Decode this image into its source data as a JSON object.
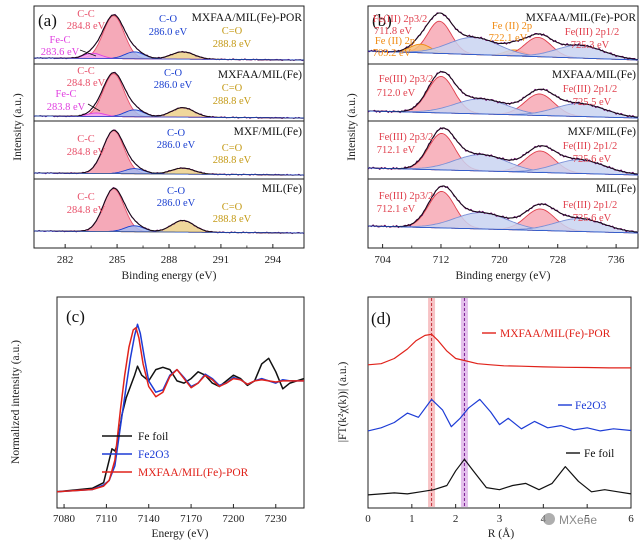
{
  "colors": {
    "cc": "#e8506a",
    "ccFill": "#f39aab",
    "co": "#1a3fd0",
    "coFill": "#a7bbf0",
    "ceo": "#c49a16",
    "ceoFill": "#ecd089",
    "fec": "#e040e0",
    "fecFill": "#f0a8f0",
    "fe3": "#e0404d",
    "fe3Fill": "#f7a8b4",
    "fe2": "#f08a10",
    "fe2Fill": "#f7c07a",
    "sat": "#7a8fd6",
    "satFill": "#c9d3f1",
    "env": "#2050c8",
    "data": "#600060",
    "fit": "#111111",
    "black": "#111111",
    "blue": "#1d3cd6",
    "red": "#e0221a",
    "mark1": "#e8545a",
    "mark2": "#b048c8"
  },
  "chart_data": [
    {
      "id": "a",
      "type": "line",
      "panel_label": "(a)",
      "xlabel": "Binding energy (eV)",
      "ylabel": "Intensity (a.u.)",
      "xlim": [
        280.2,
        295.8
      ],
      "xticks": [
        282,
        285,
        288,
        291,
        294
      ],
      "x_reversed": false,
      "stacks": [
        {
          "title": "MXFAA/MIL(Fe)-POR",
          "peaks": [
            {
              "name": "C-C",
              "energy_label": "284.8 eV",
              "center": 284.8,
              "height": 1.0,
              "width": 0.6,
              "kind": "cc"
            },
            {
              "name": "C-O",
              "energy_label": "286.0 eV",
              "center": 286.0,
              "height": 0.16,
              "width": 0.55,
              "kind": "co"
            },
            {
              "name": "C=O",
              "energy_label": "288.8 eV",
              "center": 288.8,
              "height": 0.17,
              "width": 0.65,
              "kind": "ceo"
            },
            {
              "name": "Fe-C",
              "energy_label": "283.6 eV",
              "center": 283.6,
              "height": 0.12,
              "width": 0.5,
              "kind": "fec"
            }
          ]
        },
        {
          "title": "MXFAA/MIL(Fe)",
          "peaks": [
            {
              "name": "C-C",
              "energy_label": "284.8 eV",
              "center": 284.8,
              "height": 1.0,
              "width": 0.6,
              "kind": "cc"
            },
            {
              "name": "C-O",
              "energy_label": "286.0 eV",
              "center": 286.0,
              "height": 0.16,
              "width": 0.55,
              "kind": "co"
            },
            {
              "name": "C=O",
              "energy_label": "288.8 eV",
              "center": 288.8,
              "height": 0.22,
              "width": 0.65,
              "kind": "ceo"
            },
            {
              "name": "Fe-C",
              "energy_label": "283.8 eV",
              "center": 283.8,
              "height": 0.08,
              "width": 0.5,
              "kind": "fec"
            }
          ]
        },
        {
          "title": "MXF/MIL(Fe)",
          "peaks": [
            {
              "name": "C-C",
              "energy_label": "284.8 eV",
              "center": 284.8,
              "height": 1.0,
              "width": 0.6,
              "kind": "cc"
            },
            {
              "name": "C-O",
              "energy_label": "286.0 eV",
              "center": 286.0,
              "height": 0.12,
              "width": 0.55,
              "kind": "co"
            },
            {
              "name": "C=O",
              "energy_label": "288.8 eV",
              "center": 288.8,
              "height": 0.14,
              "width": 0.65,
              "kind": "ceo"
            }
          ]
        },
        {
          "title": "MIL(Fe)",
          "peaks": [
            {
              "name": "C-C",
              "energy_label": "284.8 eV",
              "center": 284.8,
              "height": 1.0,
              "width": 0.6,
              "kind": "cc"
            },
            {
              "name": "C-O",
              "energy_label": "286.0 eV",
              "center": 286.0,
              "height": 0.14,
              "width": 0.55,
              "kind": "co"
            },
            {
              "name": "C=O",
              "energy_label": "288.8 eV",
              "center": 288.8,
              "height": 0.27,
              "width": 0.65,
              "kind": "ceo"
            }
          ]
        }
      ]
    },
    {
      "id": "b",
      "type": "line",
      "panel_label": "(b)",
      "xlabel": "Binding energy (eV)",
      "ylabel": "Intensity (a.u.)",
      "xlim": [
        702,
        739
      ],
      "xticks": [
        704,
        712,
        720,
        728,
        736
      ],
      "x_reversed": false,
      "stacks": [
        {
          "title": "MXFAA/MIL(Fe)-POR",
          "peaks": [
            {
              "name": "Fe(III) 2p3/2",
              "energy_label": "711.8 eV",
              "center": 711.8,
              "height": 0.75,
              "width": 1.6,
              "kind": "fe3"
            },
            {
              "name": "Fe (II) 2p",
              "energy_label": "709.2 eV",
              "center": 709.2,
              "height": 0.2,
              "width": 1.4,
              "kind": "fe2"
            },
            {
              "name": "Fe (II) 2p",
              "energy_label": "722.1 eV",
              "center": 722.1,
              "height": 0.14,
              "width": 1.3,
              "kind": "fe2"
            },
            {
              "name": "Fe(III) 2p1/2",
              "energy_label": "725.3 eV",
              "center": 725.3,
              "height": 0.45,
              "width": 1.8,
              "kind": "fe3"
            },
            {
              "name": "sat1",
              "energy_label": "",
              "center": 716.5,
              "height": 0.4,
              "width": 3.4,
              "kind": "sat"
            },
            {
              "name": "sat2",
              "energy_label": "",
              "center": 731.0,
              "height": 0.3,
              "width": 3.2,
              "kind": "sat"
            }
          ]
        },
        {
          "title": "MXFAA/MIL(Fe)",
          "peaks": [
            {
              "name": "Fe(III) 2p3/2",
              "energy_label": "712.0 eV",
              "center": 712.0,
              "height": 0.85,
              "width": 1.8,
              "kind": "fe3"
            },
            {
              "name": "Fe(III) 2p1/2",
              "energy_label": "725.5 eV",
              "center": 725.5,
              "height": 0.5,
              "width": 2.0,
              "kind": "fe3"
            },
            {
              "name": "sat1",
              "energy_label": "",
              "center": 717.5,
              "height": 0.35,
              "width": 3.6,
              "kind": "sat"
            },
            {
              "name": "sat2",
              "energy_label": "",
              "center": 731.0,
              "height": 0.3,
              "width": 3.4,
              "kind": "sat"
            }
          ]
        },
        {
          "title": "MXF/MIL(Fe)",
          "peaks": [
            {
              "name": "Fe(III) 2p3/2",
              "energy_label": "712.1 eV",
              "center": 712.1,
              "height": 0.85,
              "width": 1.8,
              "kind": "fe3"
            },
            {
              "name": "Fe(III) 2p1/2",
              "energy_label": "725.6 eV",
              "center": 725.6,
              "height": 0.5,
              "width": 2.0,
              "kind": "fe3"
            },
            {
              "name": "sat1",
              "energy_label": "",
              "center": 717.5,
              "height": 0.38,
              "width": 3.6,
              "kind": "sat"
            },
            {
              "name": "sat2",
              "energy_label": "",
              "center": 731.0,
              "height": 0.32,
              "width": 3.4,
              "kind": "sat"
            }
          ]
        },
        {
          "title": "MIL(Fe)",
          "peaks": [
            {
              "name": "Fe(III) 2p3/2",
              "energy_label": "712.1 eV",
              "center": 712.1,
              "height": 0.85,
              "width": 1.8,
              "kind": "fe3"
            },
            {
              "name": "Fe(III) 2p1/2",
              "energy_label": "725.6 eV",
              "center": 725.6,
              "height": 0.5,
              "width": 2.0,
              "kind": "fe3"
            },
            {
              "name": "sat1",
              "energy_label": "",
              "center": 717.5,
              "height": 0.38,
              "width": 3.6,
              "kind": "sat"
            },
            {
              "name": "sat2",
              "energy_label": "",
              "center": 731.0,
              "height": 0.3,
              "width": 3.4,
              "kind": "sat"
            }
          ]
        }
      ]
    },
    {
      "id": "c",
      "type": "line",
      "panel_label": "(c)",
      "xlabel": "Energy (eV)",
      "ylabel": "Normalized intensity (a.u.)",
      "xlim": [
        7075,
        7250
      ],
      "xticks": [
        7080,
        7110,
        7140,
        7170,
        7200,
        7230
      ],
      "ylim": [
        0,
        1.6
      ],
      "series": [
        {
          "name": "Fe foil",
          "color_key": "black",
          "x": [
            7075,
            7100,
            7108,
            7112,
            7114,
            7116,
            7118,
            7121,
            7124,
            7127,
            7130,
            7132,
            7135,
            7140,
            7145,
            7150,
            7155,
            7160,
            7165,
            7170,
            7175,
            7180,
            7185,
            7190,
            7195,
            7200,
            7205,
            7210,
            7215,
            7220,
            7225,
            7230,
            7235,
            7240,
            7250
          ],
          "y": [
            0.02,
            0.05,
            0.1,
            0.3,
            0.4,
            0.38,
            0.45,
            0.7,
            0.85,
            0.95,
            1.05,
            1.13,
            1.05,
            1.0,
            1.1,
            1.12,
            1.1,
            1.0,
            0.98,
            1.02,
            1.08,
            1.05,
            0.98,
            0.95,
            1.0,
            1.05,
            1.02,
            0.96,
            1.0,
            1.15,
            1.2,
            1.08,
            0.93,
            0.98,
            1.02
          ]
        },
        {
          "name": "Fe2O3",
          "color_key": "blue",
          "x": [
            7075,
            7100,
            7108,
            7112,
            7116,
            7120,
            7124,
            7127,
            7130,
            7132,
            7134,
            7137,
            7140,
            7145,
            7150,
            7155,
            7160,
            7165,
            7170,
            7175,
            7180,
            7185,
            7190,
            7195,
            7200,
            7205,
            7210,
            7215,
            7220,
            7225,
            7230,
            7235,
            7240,
            7250
          ],
          "y": [
            0.02,
            0.04,
            0.08,
            0.12,
            0.25,
            0.6,
            0.95,
            1.2,
            1.4,
            1.5,
            1.42,
            1.2,
            1.0,
            0.9,
            0.92,
            1.05,
            1.1,
            1.03,
            0.95,
            0.98,
            1.06,
            1.02,
            0.96,
            0.98,
            1.03,
            1.01,
            0.97,
            1.0,
            1.02,
            1.0,
            0.98,
            1.01,
            1.0,
            1.0
          ]
        },
        {
          "name": "MXFAA/MIL(Fe)-POR",
          "color_key": "red",
          "x": [
            7075,
            7100,
            7108,
            7112,
            7116,
            7120,
            7123,
            7126,
            7129,
            7131,
            7133,
            7136,
            7140,
            7145,
            7150,
            7155,
            7160,
            7165,
            7170,
            7175,
            7180,
            7185,
            7190,
            7195,
            7200,
            7205,
            7210,
            7215,
            7220,
            7225,
            7230,
            7235,
            7240,
            7250
          ],
          "y": [
            0.02,
            0.04,
            0.07,
            0.12,
            0.3,
            0.75,
            1.05,
            1.3,
            1.45,
            1.47,
            1.38,
            1.15,
            0.95,
            0.86,
            0.9,
            1.04,
            1.1,
            1.02,
            0.94,
            0.98,
            1.05,
            1.01,
            0.95,
            0.98,
            1.02,
            1.01,
            0.97,
            1.0,
            1.01,
            1.0,
            0.99,
            1.0,
            1.0,
            1.0
          ]
        }
      ]
    },
    {
      "id": "d",
      "type": "line",
      "panel_label": "(d)",
      "xlabel": "R (Å)",
      "ylabel": "|FT(k²χ(k))| (a.u.)",
      "xlim": [
        0,
        6
      ],
      "xticks": [
        0,
        1,
        2,
        3,
        4,
        5,
        6
      ],
      "markers": [
        1.45,
        2.2
      ],
      "series": [
        {
          "name": "MXFAA/MIL(Fe)-POR",
          "color_key": "red",
          "x": [
            0,
            0.3,
            0.6,
            0.9,
            1.1,
            1.3,
            1.45,
            1.6,
            1.8,
            2.0,
            2.2,
            2.5,
            2.8,
            3.1,
            3.5,
            4.0,
            4.5,
            5.0,
            5.5,
            6.0
          ],
          "y": [
            6.25,
            6.3,
            6.55,
            7.0,
            7.4,
            7.65,
            7.7,
            7.4,
            6.9,
            6.55,
            6.45,
            6.3,
            6.25,
            6.2,
            6.18,
            6.15,
            6.13,
            6.12,
            6.1,
            6.1
          ]
        },
        {
          "name": "Fe2O3",
          "color_key": "blue",
          "x": [
            0,
            0.3,
            0.6,
            0.9,
            1.15,
            1.45,
            1.7,
            1.9,
            2.1,
            2.3,
            2.55,
            2.8,
            3.0,
            3.2,
            3.5,
            3.8,
            4.1,
            4.4,
            4.7,
            5.0,
            5.3,
            5.6,
            6.0
          ],
          "y": [
            3.1,
            3.25,
            3.5,
            3.95,
            3.75,
            4.6,
            4.1,
            3.3,
            3.7,
            4.2,
            4.6,
            4.0,
            3.4,
            3.7,
            3.2,
            3.55,
            3.25,
            3.35,
            3.15,
            3.25,
            3.1,
            3.2,
            3.12
          ]
        },
        {
          "name": "Fe foil",
          "color_key": "black",
          "x": [
            0,
            0.3,
            0.6,
            0.9,
            1.2,
            1.5,
            1.8,
            2.0,
            2.2,
            2.4,
            2.7,
            3.0,
            3.3,
            3.6,
            3.9,
            4.2,
            4.5,
            4.8,
            5.1,
            5.4,
            5.7,
            6.0
          ],
          "y": [
            0.05,
            0.1,
            0.15,
            0.1,
            0.2,
            0.3,
            0.5,
            1.2,
            1.75,
            1.2,
            0.4,
            0.3,
            0.5,
            0.6,
            0.3,
            0.6,
            1.4,
            0.7,
            0.2,
            0.3,
            0.2,
            0.1
          ]
        }
      ]
    }
  ],
  "panel_a": {
    "label": "(a)",
    "xlabel": "Binding energy (eV)",
    "ylabel": "Intensity (a.u.)",
    "ticks": [
      "282",
      "285",
      "288",
      "291",
      "294"
    ],
    "s1": {
      "title": "MXFAA/MIL(Fe)-POR",
      "cc": "C-C",
      "cc_e": "284.8 eV",
      "co": "C-O",
      "co_e": "286.0 eV",
      "ceo": "C=O",
      "ceo_e": "288.8 eV",
      "fec": "Fe-C",
      "fec_e": "283.6 eV"
    },
    "s2": {
      "title": "MXFAA/MIL(Fe)",
      "cc": "C-C",
      "cc_e": "284.8 eV",
      "co": "C-O",
      "co_e": "286.0 eV",
      "ceo": "C=O",
      "ceo_e": "288.8 eV",
      "fec": "Fe-C",
      "fec_e": "283.8 eV"
    },
    "s3": {
      "title": "MXF/MIL(Fe)",
      "cc": "C-C",
      "cc_e": "284.8 eV",
      "co": "C-O",
      "co_e": "286.0 eV",
      "ceo": "C=O",
      "ceo_e": "288.8 eV"
    },
    "s4": {
      "title": "MIL(Fe)",
      "cc": "C-C",
      "cc_e": "284.8 eV",
      "co": "C-O",
      "co_e": "286.0 eV",
      "ceo": "C=O",
      "ceo_e": "288.8 eV"
    }
  },
  "panel_b": {
    "label": "(b)",
    "xlabel": "Binding energy (eV)",
    "ylabel": "Intensity (a.u.)",
    "ticks": [
      "704",
      "712",
      "720",
      "728",
      "736"
    ],
    "s1": {
      "title": "MXFAA/MIL(Fe)-POR",
      "p32": "Fe(III) 2p3/2",
      "p32_e": "711.8 eV",
      "fe2a": "Fe (II) 2p",
      "fe2a_e": "709.2 eV",
      "fe2b": "Fe (II) 2p",
      "fe2b_e": "722.1 eV",
      "p12": "Fe(III) 2p1/2",
      "p12_e": "725.3 eV"
    },
    "s2": {
      "title": "MXFAA/MIL(Fe)",
      "p32": "Fe(III) 2p3/2",
      "p32_e": "712.0 eV",
      "p12": "Fe(III) 2p1/2",
      "p12_e": "725.5 eV"
    },
    "s3": {
      "title": "MXF/MIL(Fe)",
      "p32": "Fe(III) 2p3/2",
      "p32_e": "712.1 eV",
      "p12": "Fe(III) 2p1/2",
      "p12_e": "725.6 eV"
    },
    "s4": {
      "title": "MIL(Fe)",
      "p32": "Fe(III) 2p3/2",
      "p32_e": "712.1 eV",
      "p12": "Fe(III) 2p1/2",
      "p12_e": "725.6 eV"
    }
  },
  "panel_c": {
    "label": "(c)",
    "xlabel": "Energy (eV)",
    "ylabel": "Normalized intensity (a.u.)",
    "ticks": [
      "7080",
      "7110",
      "7140",
      "7170",
      "7200",
      "7230"
    ],
    "legend": [
      "Fe foil",
      "Fe2O3",
      "MXFAA/MIL(Fe)-POR"
    ]
  },
  "panel_d": {
    "label": "(d)",
    "xlabel": "R (Å)",
    "ylabel": "|FT(k²χ(k))| (a.u.)",
    "ticks": [
      "0",
      "1",
      "2",
      "3",
      "4",
      "5",
      "6"
    ],
    "lab_red": "MXFAA/MIL(Fe)-POR",
    "lab_blue": "Fe2O3",
    "lab_black": "Fe foil"
  },
  "watermark": "MXene"
}
